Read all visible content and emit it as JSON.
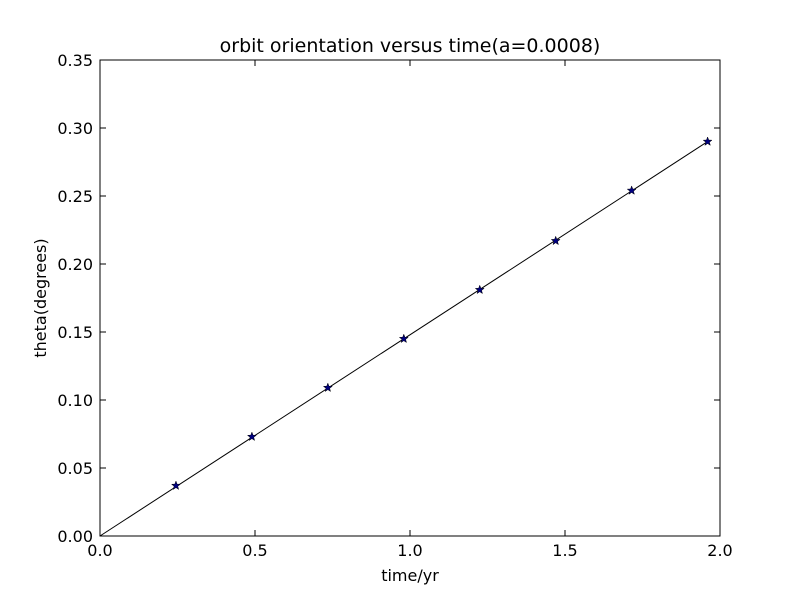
{
  "chart_data": {
    "type": "line",
    "title": "orbit orientation versus time(a=0.0008)",
    "xlabel": "time/yr",
    "ylabel": "theta(degrees)",
    "xlim": [
      0.0,
      2.0
    ],
    "ylim": [
      0.0,
      0.35
    ],
    "xticks": [
      "0.0",
      "0.5",
      "1.0",
      "1.5",
      "2.0"
    ],
    "yticks": [
      "0.00",
      "0.05",
      "0.10",
      "0.15",
      "0.20",
      "0.25",
      "0.30",
      "0.35"
    ],
    "grid": false,
    "series": [
      {
        "style": "line",
        "color": "#000000",
        "x": [
          0.0,
          1.96
        ],
        "y": [
          0.0,
          0.29
        ]
      },
      {
        "style": "markers",
        "marker": "star",
        "color": "#000080",
        "x": [
          0.245,
          0.49,
          0.735,
          0.98,
          1.225,
          1.47,
          1.715,
          1.96
        ],
        "y": [
          0.037,
          0.073,
          0.109,
          0.145,
          0.181,
          0.217,
          0.254,
          0.29
        ]
      }
    ]
  }
}
